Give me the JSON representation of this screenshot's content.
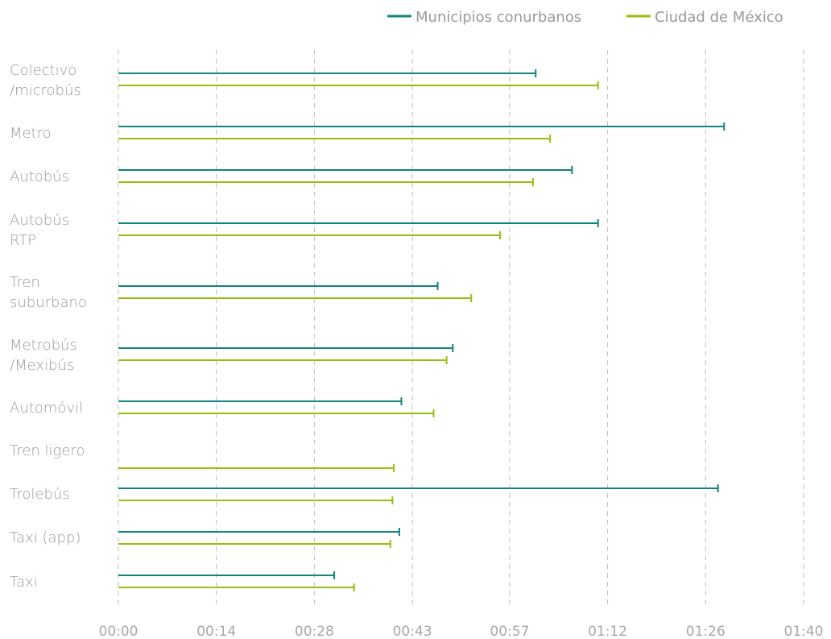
{
  "chart_data": {
    "type": "bar",
    "orientation": "horizontal",
    "title": "",
    "xlabel": "",
    "ylabel": "",
    "legend_position": "top-right",
    "grid": true,
    "xlim_minutes": [
      0,
      100
    ],
    "x_ticks": [
      {
        "label": "00:00",
        "minutes": 0
      },
      {
        "label": "00:14",
        "minutes": 14.3
      },
      {
        "label": "00:28",
        "minutes": 28.6
      },
      {
        "label": "00:43",
        "minutes": 42.9
      },
      {
        "label": "00:57",
        "minutes": 57.1
      },
      {
        "label": "01:12",
        "minutes": 71.4
      },
      {
        "label": "01:26",
        "minutes": 85.7
      },
      {
        "label": "01:40",
        "minutes": 100
      }
    ],
    "categories": [
      [
        "Colectivo",
        "/microbús"
      ],
      [
        "Metro"
      ],
      [
        "Autobús"
      ],
      [
        "Autobús",
        "RTP"
      ],
      [
        "Tren",
        "suburbano"
      ],
      [
        "Metrobús",
        "/Mexibús"
      ],
      [
        "Automóvil"
      ],
      [
        "Tren ligero"
      ],
      [
        "Trolebús"
      ],
      [
        "Taxi (app)"
      ],
      [
        "Taxi"
      ]
    ],
    "series": [
      {
        "name": "Municipios conurbanos",
        "color": "#10847e",
        "values_minutes": [
          60.9,
          88.4,
          66.2,
          70.0,
          46.6,
          48.8,
          41.3,
          null,
          87.5,
          41.0,
          31.5
        ]
      },
      {
        "name": "Ciudad de México",
        "color": "#97bf0d",
        "values_minutes": [
          70.0,
          63.0,
          60.5,
          55.7,
          51.5,
          47.9,
          46.0,
          40.2,
          40.0,
          39.7,
          34.4
        ]
      }
    ]
  }
}
